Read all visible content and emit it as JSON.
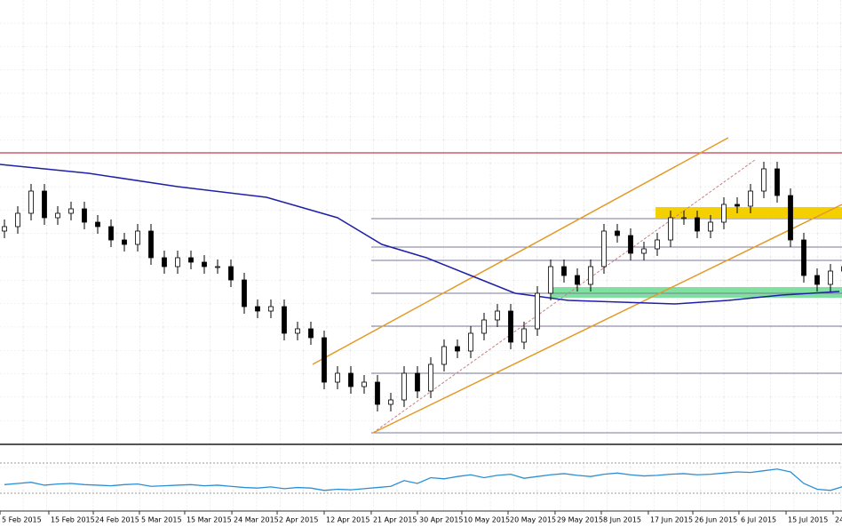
{
  "chart_data": {
    "type": "candlestick",
    "xlim": [
      -0.333,
      62.867
    ],
    "ylim": [
      0,
      500
    ],
    "xticks": [
      {
        "value": -0.33,
        "label": "5 Feb 2015"
      },
      {
        "value": 3.33,
        "label": "15 Feb 2015"
      },
      {
        "value": 6.67,
        "label": "24 Feb 2015"
      },
      {
        "value": 10.13,
        "label": "5 Mar 2015"
      },
      {
        "value": 13.53,
        "label": "15 Mar 2015"
      },
      {
        "value": 17.07,
        "label": "24 Mar 2015"
      },
      {
        "value": 20.47,
        "label": "2 Apr 2015"
      },
      {
        "value": 24,
        "label": "12 Apr 2015"
      },
      {
        "value": 27.53,
        "label": "21 Apr 2015"
      },
      {
        "value": 31,
        "label": "30 Apr 2015"
      },
      {
        "value": 34.33,
        "label": "10 May 2015"
      },
      {
        "value": 37.8,
        "label": "20 May 2015"
      },
      {
        "value": 41.33,
        "label": "29 May 2015"
      },
      {
        "value": 44.8,
        "label": "8 Jun 2015"
      },
      {
        "value": 48.33,
        "label": "17 Jun 2015"
      },
      {
        "value": 51.67,
        "label": "26 Jun 2015"
      },
      {
        "value": 55.13,
        "label": "6 Jul 2015"
      },
      {
        "value": 58.67,
        "label": "15 Jul 2015"
      },
      {
        "value": 62.2,
        "label": "24"
      }
    ],
    "open": [
      240,
      245,
      260,
      285,
      255,
      260,
      265,
      250,
      245,
      230,
      225,
      240,
      210,
      200,
      210,
      205,
      200,
      200,
      185,
      155,
      150,
      155,
      125,
      130,
      120,
      70,
      80,
      65,
      70,
      45,
      50,
      80,
      60,
      90,
      110,
      105,
      125,
      140,
      150,
      115,
      130,
      170,
      200,
      190,
      180,
      200,
      240,
      235,
      215,
      220,
      230,
      255,
      255,
      240,
      250,
      270,
      268,
      285,
      310,
      280,
      230,
      190,
      180,
      195
    ],
    "high": [
      253,
      268,
      293,
      293,
      268,
      273,
      273,
      258,
      253,
      238,
      248,
      248,
      218,
      218,
      218,
      213,
      208,
      208,
      193,
      163,
      163,
      163,
      138,
      138,
      128,
      88,
      88,
      78,
      78,
      58,
      88,
      88,
      98,
      118,
      118,
      133,
      148,
      158,
      158,
      138,
      178,
      208,
      208,
      198,
      208,
      248,
      248,
      243,
      228,
      238,
      263,
      263,
      263,
      258,
      278,
      278,
      293,
      318,
      318,
      288,
      238,
      198,
      203,
      208
    ],
    "low": [
      232,
      237,
      252,
      247,
      247,
      252,
      242,
      237,
      222,
      217,
      217,
      202,
      192,
      192,
      197,
      192,
      192,
      177,
      147,
      142,
      142,
      117,
      117,
      112,
      62,
      62,
      57,
      57,
      37,
      37,
      42,
      52,
      52,
      82,
      97,
      97,
      117,
      132,
      107,
      107,
      122,
      162,
      182,
      172,
      172,
      192,
      227,
      207,
      207,
      212,
      222,
      247,
      232,
      232,
      242,
      260,
      260,
      277,
      272,
      222,
      182,
      172,
      172,
      187
    ],
    "close": [
      245,
      260,
      285,
      255,
      260,
      265,
      250,
      245,
      230,
      225,
      240,
      210,
      200,
      210,
      205,
      200,
      200,
      185,
      155,
      150,
      155,
      125,
      130,
      120,
      70,
      80,
      65,
      70,
      45,
      50,
      80,
      60,
      90,
      110,
      105,
      125,
      140,
      150,
      115,
      130,
      170,
      200,
      190,
      180,
      200,
      240,
      235,
      215,
      220,
      230,
      255,
      255,
      240,
      250,
      270,
      268,
      285,
      310,
      280,
      230,
      190,
      180,
      195,
      200
    ],
    "ma": {
      "color": "#1f1fa8",
      "x": [
        -0.33,
        6.33,
        13,
        19.67,
        25,
        28.33,
        31.67,
        35,
        38.33,
        42.33,
        46.33,
        50.33,
        54.33,
        58.33,
        62.67
      ],
      "values": [
        315,
        305,
        290,
        278,
        255,
        225,
        210,
        190,
        170,
        162,
        160,
        158,
        162,
        168,
        172
      ]
    },
    "resistance": {
      "color": "#c83c50",
      "value": 328
    },
    "fib_levels": {
      "color": "#7a7a9a",
      "start": 27.53,
      "values": [
        254,
        222,
        207,
        170,
        133,
        80,
        13
      ]
    },
    "channel": {
      "color": "#e39a2a",
      "lines": [
        {
          "x": [
            23.13,
            54.33
          ],
          "values": [
            90,
            345
          ]
        },
        {
          "x": [
            27.67,
            62.87
          ],
          "values": [
            13,
            270
          ]
        }
      ]
    },
    "trend_dashed": {
      "color": "#c88080",
      "x": [
        27.67,
        56.33
      ],
      "values": [
        13,
        320
      ]
    },
    "zones": [
      {
        "color": "#f5d000",
        "x": [
          48.87,
          62.87
        ],
        "values": [
          267,
          255
        ]
      },
      {
        "color": "#7fe0a0",
        "x": [
          41,
          62.87
        ],
        "values": [
          177,
          165
        ]
      }
    ],
    "oscillator": {
      "color": "#2b8fd6",
      "ylim": [
        0,
        100
      ],
      "values": [
        38,
        40,
        42,
        37,
        39,
        40,
        38,
        37,
        36,
        38,
        39,
        35,
        36,
        37,
        38,
        36,
        37,
        35,
        33,
        32,
        34,
        31,
        33,
        32,
        28,
        30,
        29,
        31,
        33,
        35,
        45,
        40,
        50,
        48,
        52,
        55,
        50,
        54,
        56,
        49,
        52,
        55,
        57,
        54,
        52,
        56,
        58,
        55,
        53,
        54,
        56,
        57,
        55,
        56,
        58,
        60,
        59,
        62,
        65,
        60,
        40,
        30,
        28,
        35
      ]
    }
  }
}
